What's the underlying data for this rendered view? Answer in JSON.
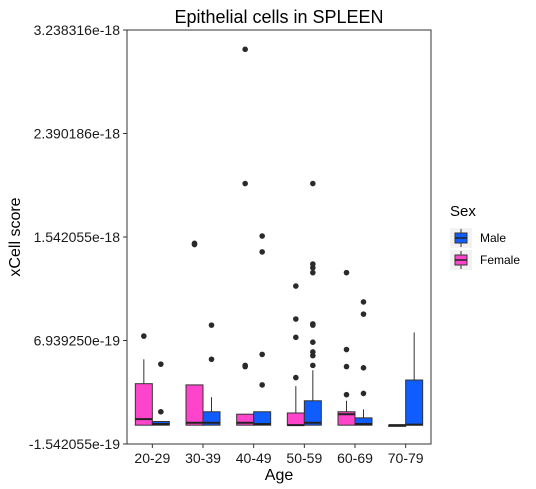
{
  "chart_data": {
    "type": "boxplot",
    "title": "Epithelial cells in SPLEEN",
    "xlabel": "Age",
    "ylabel": "xCell score",
    "categories": [
      "20-29",
      "30-39",
      "40-49",
      "50-59",
      "60-69",
      "70-79"
    ],
    "y_ticks": [
      -1.542055e-19,
      6.93925e-19,
      1.542055e-18,
      2.390186e-18,
      3.238316e-18
    ],
    "y_tick_labels": [
      "-1.542055e-19",
      "6.939250e-19",
      "1.542055e-18",
      "2.390186e-18",
      "3.238316e-18"
    ],
    "ylim": [
      -1.542055e-19,
      3.238316e-18
    ],
    "grid": false,
    "legend": {
      "title": "Sex",
      "position": "right",
      "entries": [
        {
          "label": "Male",
          "color": "#0f5cff"
        },
        {
          "label": "Female",
          "color": "#ff44cc"
        }
      ]
    },
    "series": [
      {
        "name": "Female",
        "color": "#ff44cc",
        "boxes": [
          {
            "category": "20-29",
            "min": 0.0,
            "q1": 0.0,
            "median": 5e-20,
            "q3": 3.4e-19,
            "max": 5.4e-19,
            "outliers": [
              7.3e-19
            ]
          },
          {
            "category": "30-39",
            "min": 0.0,
            "q1": 0.0,
            "median": 2e-20,
            "q3": 3.3e-19,
            "max": 3.3e-19,
            "outliers": [
              1.49e-18,
              1.48e-18
            ]
          },
          {
            "category": "40-49",
            "min": 0.0,
            "q1": 0.0,
            "median": 2e-20,
            "q3": 9e-20,
            "max": 9e-20,
            "outliers": [
              4.9e-19,
              4.8e-19,
              1.98e-18,
              3.08e-18
            ]
          },
          {
            "category": "50-59",
            "min": 0.0,
            "q1": 0.0,
            "median": 0.0,
            "q3": 1e-19,
            "max": 3.2e-19,
            "outliers": [
              3.9e-19,
              7.2e-19,
              8.7e-19,
              1.14e-18
            ]
          },
          {
            "category": "60-69",
            "min": 0.0,
            "q1": 0.0,
            "median": 9e-20,
            "q3": 1.1e-19,
            "max": 2e-19,
            "outliers": [
              2.5e-19,
              4.8e-19,
              6.2e-19,
              1.25e-18
            ]
          }
        ]
      },
      {
        "name": "Male",
        "color": "#0f5cff",
        "boxes": [
          {
            "category": "20-29",
            "min": 0.0,
            "q1": 0.0,
            "median": 1e-20,
            "q3": 3e-20,
            "max": 3e-20,
            "outliers": [
              1.1e-19,
              5e-19
            ]
          },
          {
            "category": "30-39",
            "min": 0.0,
            "q1": 0.0,
            "median": 2e-20,
            "q3": 1.1e-19,
            "max": 2.3e-19,
            "outliers": [
              5.4e-19,
              8.2e-19
            ]
          },
          {
            "category": "40-49",
            "min": 0.0,
            "q1": 0.0,
            "median": 1e-20,
            "q3": 1.1e-19,
            "max": 1.1e-19,
            "outliers": [
              3.3e-19,
              5.8e-19,
              1.42e-18,
              1.55e-18
            ]
          },
          {
            "category": "50-59",
            "min": 0.0,
            "q1": 0.0,
            "median": 2e-20,
            "q3": 2e-19,
            "max": 4.5e-19,
            "outliers": [
              4.9e-19,
              5.7e-19,
              6e-19,
              6.8e-19,
              8.2e-19,
              8.3e-19,
              1.25e-18,
              1.29e-18,
              1.32e-18,
              1.98e-18
            ]
          },
          {
            "category": "60-69",
            "min": 0.0,
            "q1": 0.0,
            "median": 1e-20,
            "q3": 6e-20,
            "max": 1.3e-19,
            "outliers": [
              2.6e-19,
              4.7e-19,
              9.1e-19,
              1.01e-18
            ]
          },
          {
            "category": "70-79",
            "min": 0.0,
            "q1": 0.0,
            "median": 5e-21,
            "q3": 3.7e-19,
            "max": 7.6e-19,
            "outliers": []
          }
        ]
      },
      {
        "name": "",
        "color": "#0f5cff",
        "boxes": [
          {
            "category": "70-79",
            "min": 0.0,
            "q1": 0.0,
            "median": 0.0,
            "q3": 0.0,
            "max": 0.0,
            "outliers": []
          }
        ]
      }
    ]
  }
}
